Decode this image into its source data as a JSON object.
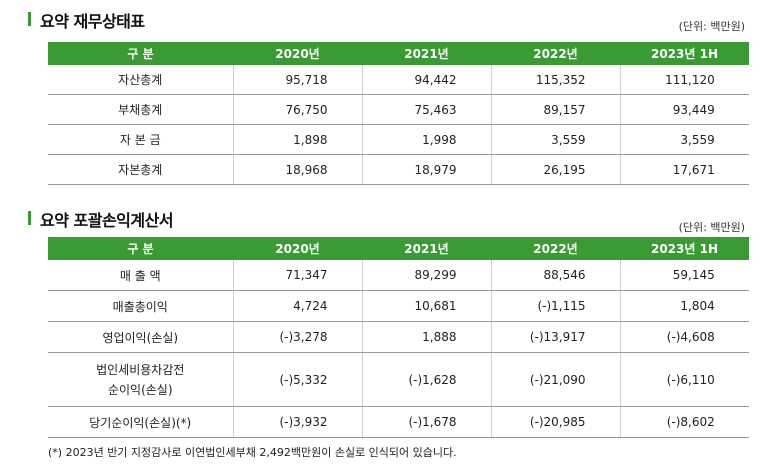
{
  "balance_sheet": {
    "title": "요약 재무상태표",
    "unit": "(단위: 백만원)",
    "header": [
      "구 분",
      "2020년",
      "2021년",
      "2022년",
      "2023년 1H"
    ],
    "rows": [
      {
        "label": "자산총계",
        "values": [
          "95,718",
          "94,442",
          "115,352",
          "111,120"
        ]
      },
      {
        "label": "부채총계",
        "values": [
          "76,750",
          "75,463",
          "89,157",
          "93,449"
        ]
      },
      {
        "label": "자 본 금",
        "values": [
          "1,898",
          "1,998",
          "3,559",
          "3,559"
        ]
      },
      {
        "label": "자본총계",
        "values": [
          "18,968",
          "18,979",
          "26,195",
          "17,671"
        ]
      }
    ]
  },
  "income_statement": {
    "title": "요약 포괄손익계산서",
    "unit": "(단위: 백만원)",
    "header": [
      "구 분",
      "2020년",
      "2021년",
      "2022년",
      "2023년 1H"
    ],
    "rows": [
      {
        "label": "매 출 액",
        "values": [
          "71,347",
          "89,299",
          "88,546",
          "59,145"
        ]
      },
      {
        "label": "매출총이익",
        "values": [
          "4,724",
          "10,681",
          "(-)1,115",
          "1,804"
        ]
      },
      {
        "label": "영업이익(손실)",
        "values": [
          "(-)3,278",
          "1,888",
          "(-)13,917",
          "(-)4,608"
        ]
      },
      {
        "label_line1": "법인세비용차감전",
        "label_line2": "순이익(손실)",
        "values": [
          "(-)5,332",
          "(-)1,628",
          "(-)21,090",
          "(-)6,110"
        ]
      },
      {
        "label": "당기순이익(손실)(*)",
        "values": [
          "(-)3,932",
          "(-)1,678",
          "(-)20,985",
          "(-)8,602"
        ]
      }
    ],
    "note": "(*) 2023년 반기 지정감사로 이연법인세부채 2,492백만원이 손실로 인식되어 있습니다."
  },
  "colors": {
    "accent": "#3a9b35",
    "header_text": "#ffffff"
  }
}
